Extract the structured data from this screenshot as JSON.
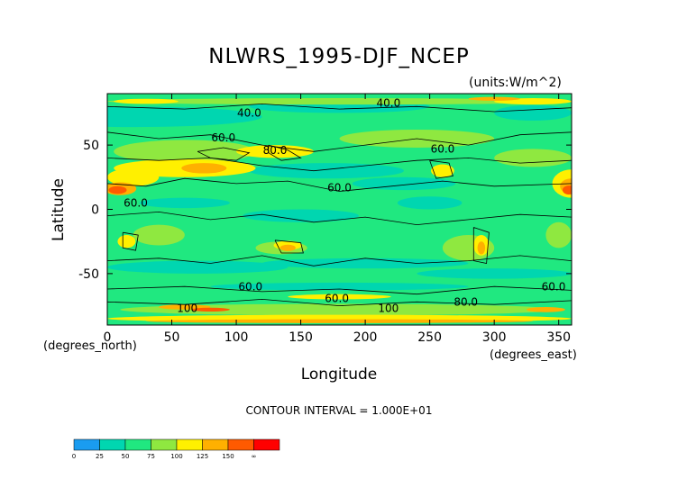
{
  "chart_data": {
    "type": "heatmap",
    "title": "NLWRS_1995-DJF_NCEP",
    "units": "(units:W/m^2)",
    "xlabel": "Longitude",
    "ylabel": "Latitude",
    "x_unit_label": "(degrees_east)",
    "y_unit_label": "(degrees_north)",
    "xlim": [
      0,
      360
    ],
    "ylim": [
      -90,
      90
    ],
    "x_ticks": [
      "0",
      "50",
      "100",
      "150",
      "200",
      "250",
      "300",
      "350"
    ],
    "y_ticks": [
      "50",
      "0",
      "-50"
    ],
    "contour_labels": [
      {
        "text": "40.0",
        "lon": 110,
        "lat": 72
      },
      {
        "text": "40.0",
        "lon": 218,
        "lat": 80
      },
      {
        "text": "60.0",
        "lon": 90,
        "lat": 53
      },
      {
        "text": "80.0",
        "lon": 130,
        "lat": 43
      },
      {
        "text": "60.0",
        "lon": 260,
        "lat": 44
      },
      {
        "text": "60.0",
        "lon": 180,
        "lat": 14
      },
      {
        "text": "60.0",
        "lon": 22,
        "lat": 2
      },
      {
        "text": "60.0",
        "lon": 111,
        "lat": -63
      },
      {
        "text": "60.0",
        "lon": 178,
        "lat": -72
      },
      {
        "text": "60.0",
        "lon": 346,
        "lat": -63
      },
      {
        "text": "100",
        "lon": 62,
        "lat": -80
      },
      {
        "text": "100",
        "lon": 218,
        "lat": -80
      },
      {
        "text": "80.0",
        "lon": 278,
        "lat": -75
      }
    ],
    "contour_interval_text": "CONTOUR INTERVAL = 1.000E+01",
    "colorbar": {
      "levels": [
        "0",
        "25",
        "50",
        "75",
        "100",
        "125",
        "150",
        "∞"
      ],
      "colors": [
        "#1a9cf0",
        "#00d6b0",
        "#20e880",
        "#8fe840",
        "#fff000",
        "#ffb000",
        "#ff5a00",
        "#ff0000"
      ]
    },
    "grid": false
  }
}
